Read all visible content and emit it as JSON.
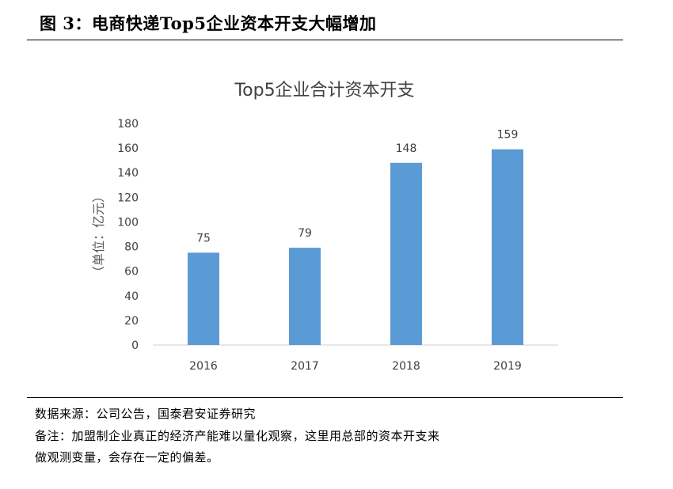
{
  "figure_title": "图 3：电商快递Top5企业资本开支大幅增加",
  "source": "数据来源：公司公告，国泰君安证券研究",
  "note_line1": "备注：加盟制企业真正的经济产能难以量化观察，这里用总部的资本开支来",
  "note_line2": "做观测变量，会存在一定的偏差。",
  "chart_data": {
    "type": "bar",
    "title": "Top5企业合计资本开支",
    "ylabel": "（单位：亿元）",
    "xlabel": "",
    "categories": [
      "2016",
      "2017",
      "2018",
      "2019"
    ],
    "values": [
      75,
      79,
      148,
      159
    ],
    "ylim": [
      0,
      180
    ],
    "yticks": [
      0,
      20,
      40,
      60,
      80,
      100,
      120,
      140,
      160,
      180
    ],
    "bar_color": "#5B9BD5",
    "grid": false,
    "data_labels": true
  }
}
